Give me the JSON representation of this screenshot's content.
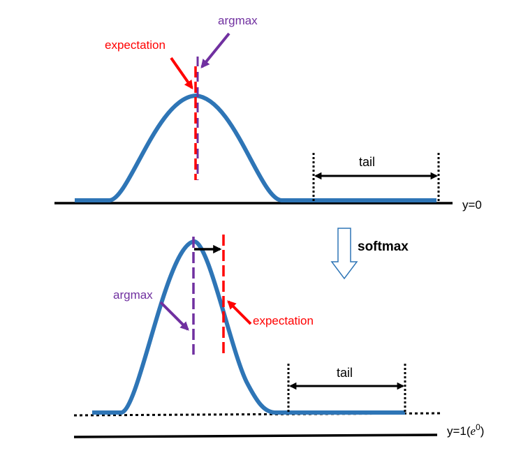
{
  "top_panel": {
    "argmax_label": "argmax",
    "expectation_label": "expectation",
    "tail_label": "tail",
    "baseline_label": "y=0"
  },
  "transform": {
    "label": "softmax"
  },
  "bottom_panel": {
    "argmax_label": "argmax",
    "expectation_label": "expectation",
    "tail_label": "tail",
    "baseline_label_prefix": "y=1(",
    "baseline_label_base": "e",
    "baseline_label_exponent": "0",
    "baseline_label_suffix": ")"
  },
  "colors": {
    "curve": "#2E75B6",
    "argmax": "#7030A0",
    "expectation": "#FF0000",
    "axis": "#000000",
    "arrow_outline": "#2E75B6"
  }
}
